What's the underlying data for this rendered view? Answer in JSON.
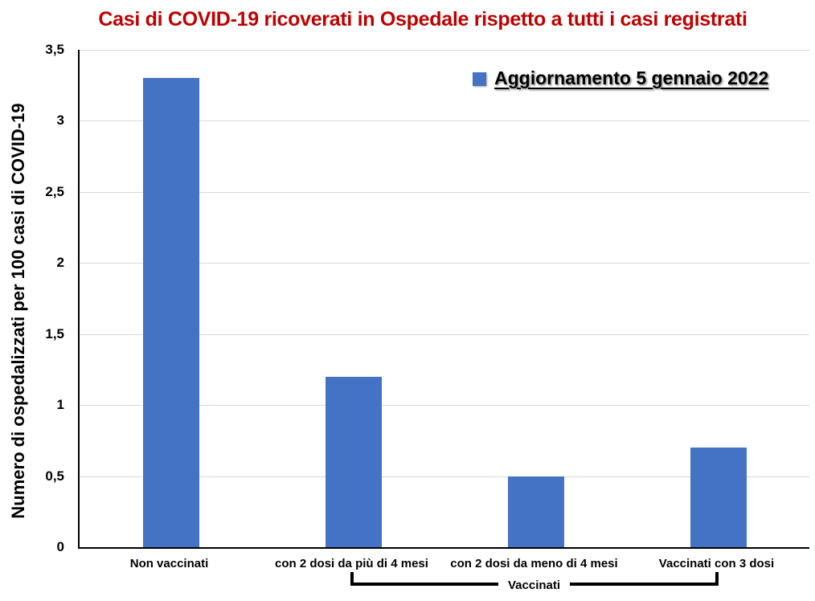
{
  "legend": {
    "label": "Aggiornamento 5 gennaio 2022",
    "marker_color": "#4472C4"
  },
  "chart_data": {
    "type": "bar",
    "title": "Casi di COVID-19 ricoverati in Ospedale rispetto a tutti i casi registrati",
    "title_color": "#C00000",
    "categories": [
      "Non vaccinati",
      "con 2 dosi da più di 4 mesi",
      "con 2 dosi da meno di 4 mesi",
      "Vaccinati con 3 dosi"
    ],
    "values": [
      3.3,
      1.2,
      0.5,
      0.7
    ],
    "ylabel": "Numero di ospedalizzati per 100 casi di COVID-19",
    "xlabel": "",
    "ylim": [
      0,
      3.5
    ],
    "ytick_step": 0.5,
    "ytick_labels": [
      "0",
      "0,5",
      "1",
      "1,5",
      "2",
      "2,5",
      "3",
      "3,5"
    ],
    "grid": true,
    "gridline_color": "#D9D9D9",
    "bar_color": "#4472C4",
    "legend": [
      "Aggiornamento 5 gennaio 2022"
    ],
    "legend_position": "top-right",
    "group_annotation": {
      "label": "Vaccinati",
      "from_category_index": 1,
      "to_category_index": 3
    }
  }
}
